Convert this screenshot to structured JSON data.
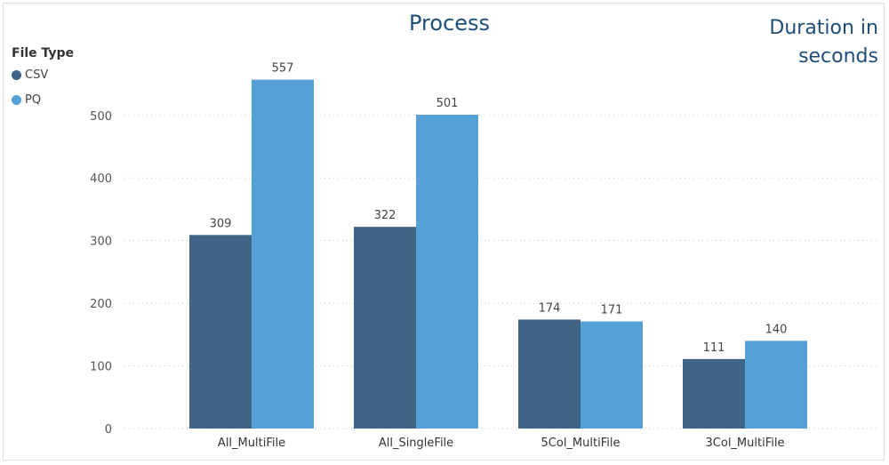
{
  "chart_data": {
    "type": "bar",
    "title": "Process",
    "ylabel": "Duration in seconds",
    "xlabel": "",
    "legend_title": "File Type",
    "legend_position": "top-left",
    "categories": [
      "All_MultiFile",
      "All_SingleFile",
      "5Col_MultiFile",
      "3Col_MultiFile"
    ],
    "series": [
      {
        "name": "CSV",
        "values": [
          309,
          322,
          174,
          111
        ],
        "color": "#3f6485"
      },
      {
        "name": "PQ",
        "values": [
          557,
          501,
          171,
          140
        ],
        "color": "#55a0d4"
      }
    ],
    "yticks": [
      0,
      100,
      200,
      300,
      400,
      500
    ],
    "ylim": [
      0,
      600
    ],
    "grid": "horizontal-dotted"
  }
}
